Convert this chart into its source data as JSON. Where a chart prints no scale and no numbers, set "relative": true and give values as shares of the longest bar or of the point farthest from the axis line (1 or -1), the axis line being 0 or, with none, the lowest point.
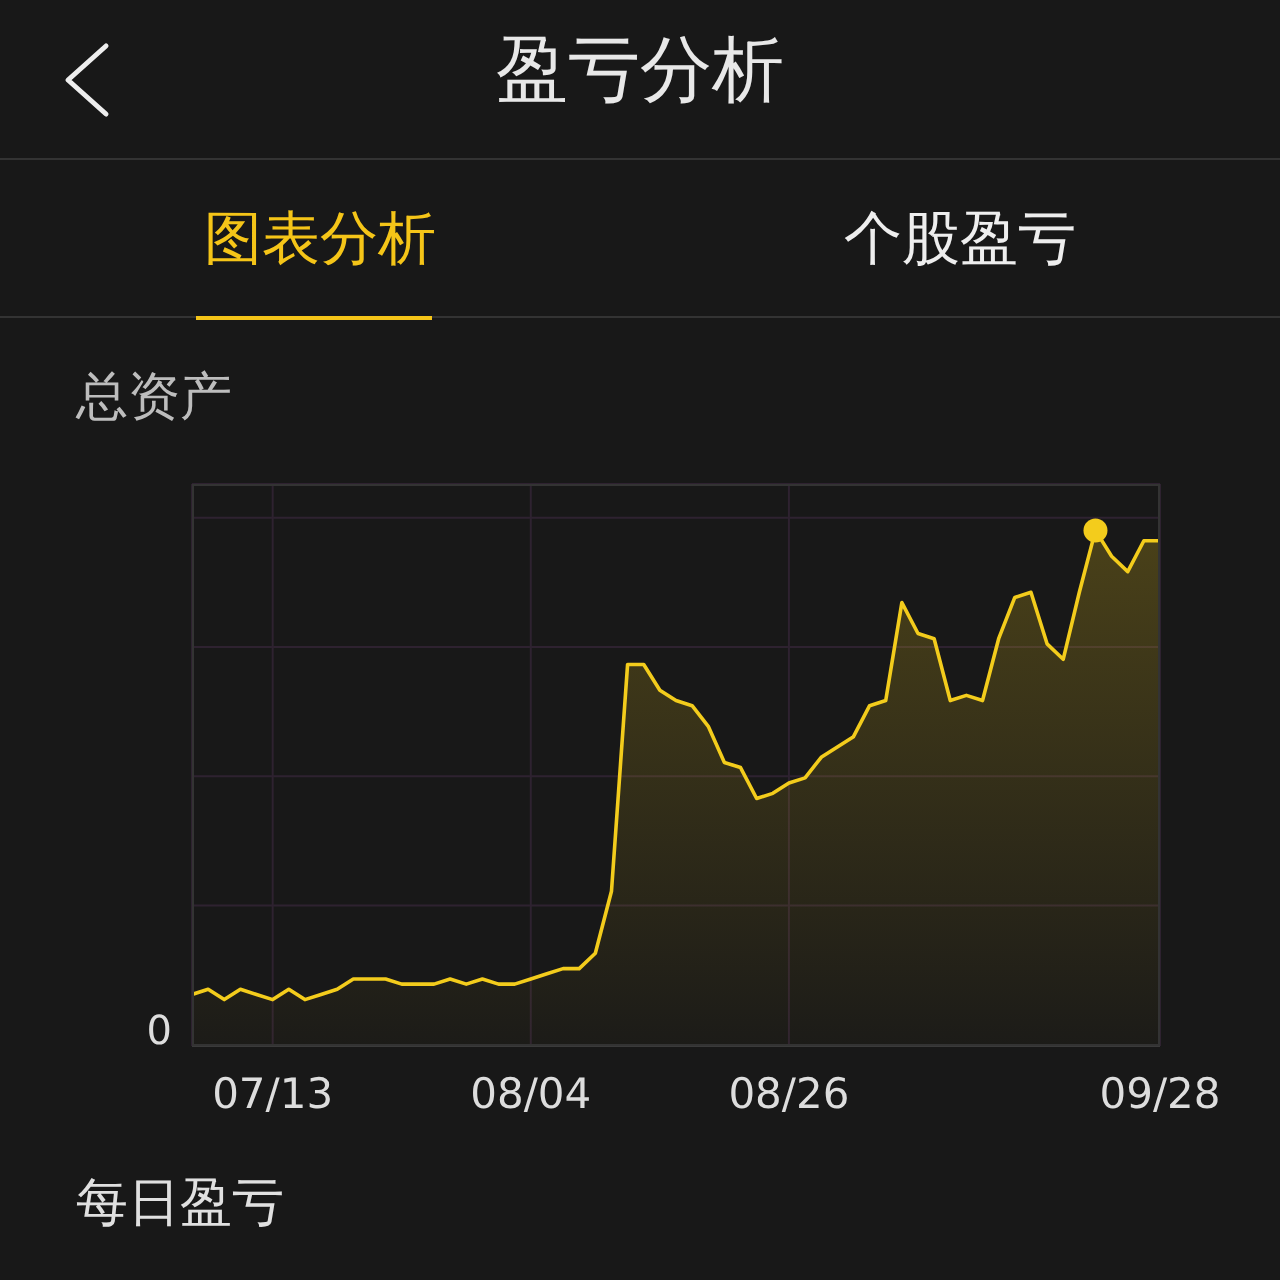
{
  "chart_data": {
    "type": "area",
    "title": "总资产",
    "categories": [
      null,
      null,
      null,
      null,
      null,
      "07/13",
      null,
      null,
      null,
      null,
      null,
      null,
      null,
      null,
      null,
      null,
      null,
      null,
      null,
      null,
      null,
      "08/04",
      null,
      null,
      null,
      null,
      null,
      null,
      null,
      null,
      null,
      null,
      null,
      null,
      null,
      null,
      null,
      "08/26",
      null,
      null,
      null,
      null,
      null,
      null,
      null,
      null,
      null,
      null,
      null,
      null,
      null,
      null,
      null,
      null,
      null,
      null,
      null,
      null,
      null,
      null,
      "09/28"
    ],
    "relative": true,
    "grid": true,
    "series": [
      {
        "color": "#f3cc1c",
        "values": [
          0.1,
          0.11,
          0.09,
          0.11,
          0.1,
          0.09,
          0.11,
          0.09,
          0.1,
          0.11,
          0.13,
          0.13,
          0.13,
          0.12,
          0.12,
          0.12,
          0.13,
          0.12,
          0.13,
          0.12,
          0.12,
          0.13,
          0.14,
          0.15,
          0.15,
          0.18,
          0.3,
          0.74,
          0.74,
          0.69,
          0.67,
          0.66,
          0.62,
          0.55,
          0.54,
          0.48,
          0.49,
          0.51,
          0.52,
          0.56,
          0.58,
          0.6,
          0.66,
          0.67,
          0.86,
          0.8,
          0.79,
          0.67,
          0.68,
          0.67,
          0.79,
          0.87,
          0.88,
          0.78,
          0.75,
          0.88,
          1,
          0.95,
          0.92,
          0.98,
          0.98
        ]
      },
      {
        "type": "scatter",
        "color": "#f3cc1c",
        "values": [
          null,
          null,
          null,
          null,
          null,
          null,
          null,
          null,
          null,
          null,
          null,
          null,
          null,
          null,
          null,
          null,
          null,
          null,
          null,
          null,
          null,
          null,
          null,
          null,
          null,
          null,
          null,
          null,
          null,
          null,
          null,
          null,
          null,
          null,
          null,
          null,
          null,
          null,
          null,
          null,
          null,
          null,
          null,
          null,
          null,
          null,
          null,
          null,
          null,
          null,
          null,
          null,
          null,
          null,
          null,
          null,
          1,
          null,
          null,
          null,
          null
        ]
      }
    ],
    "annotations": [
      "盈亏分析",
      "图表分析",
      "个股盈亏",
      "每日盈亏",
      "0"
    ]
  }
}
